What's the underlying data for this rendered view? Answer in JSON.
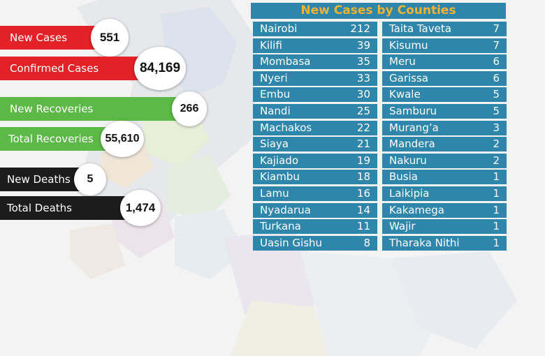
{
  "stats": [
    {
      "label": "New Cases",
      "value": "551"
    },
    {
      "label": "Confirmed Cases",
      "value": "84,169"
    },
    {
      "label": "New Recoveries",
      "value": "266"
    },
    {
      "label": "Total Recoveries",
      "value": "55,610"
    },
    {
      "label": "New Deaths",
      "value": "5"
    },
    {
      "label": "Total Deaths",
      "value": "1,474"
    }
  ],
  "colors": {
    "red": "#e32227",
    "green": "#5cb947",
    "black": "#1c1c1c",
    "table_blue": "#2f86ab",
    "title_orange": "#f5b331"
  },
  "chart_data": {
    "type": "table",
    "title": "New Cases by Counties",
    "rows": [
      {
        "county": "Nairobi",
        "cases": 212
      },
      {
        "county": "Kilifi",
        "cases": 39
      },
      {
        "county": "Mombasa",
        "cases": 35
      },
      {
        "county": "Nyeri",
        "cases": 33
      },
      {
        "county": "Embu",
        "cases": 30
      },
      {
        "county": "Nandi",
        "cases": 25
      },
      {
        "county": "Machakos",
        "cases": 22
      },
      {
        "county": "Siaya",
        "cases": 21
      },
      {
        "county": "Kajiado",
        "cases": 19
      },
      {
        "county": "Kiambu",
        "cases": 18
      },
      {
        "county": "Lamu",
        "cases": 16
      },
      {
        "county": "Nyadarua",
        "cases": 14
      },
      {
        "county": "Turkana",
        "cases": 11
      },
      {
        "county": "Uasin Gishu",
        "cases": 8
      },
      {
        "county": "Taita Taveta",
        "cases": 7
      },
      {
        "county": "Kisumu",
        "cases": 7
      },
      {
        "county": "Meru",
        "cases": 6
      },
      {
        "county": "Garissa",
        "cases": 6
      },
      {
        "county": "Kwale",
        "cases": 5
      },
      {
        "county": "Samburu",
        "cases": 5
      },
      {
        "county": "Murang’a",
        "cases": 3
      },
      {
        "county": "Mandera",
        "cases": 2
      },
      {
        "county": "Nakuru",
        "cases": 2
      },
      {
        "county": "Busia",
        "cases": 1
      },
      {
        "county": "Laikipia",
        "cases": 1
      },
      {
        "county": "Kakamega",
        "cases": 1
      },
      {
        "county": "Wajir",
        "cases": 1
      },
      {
        "county": "Tharaka Nithi",
        "cases": 1
      }
    ]
  }
}
